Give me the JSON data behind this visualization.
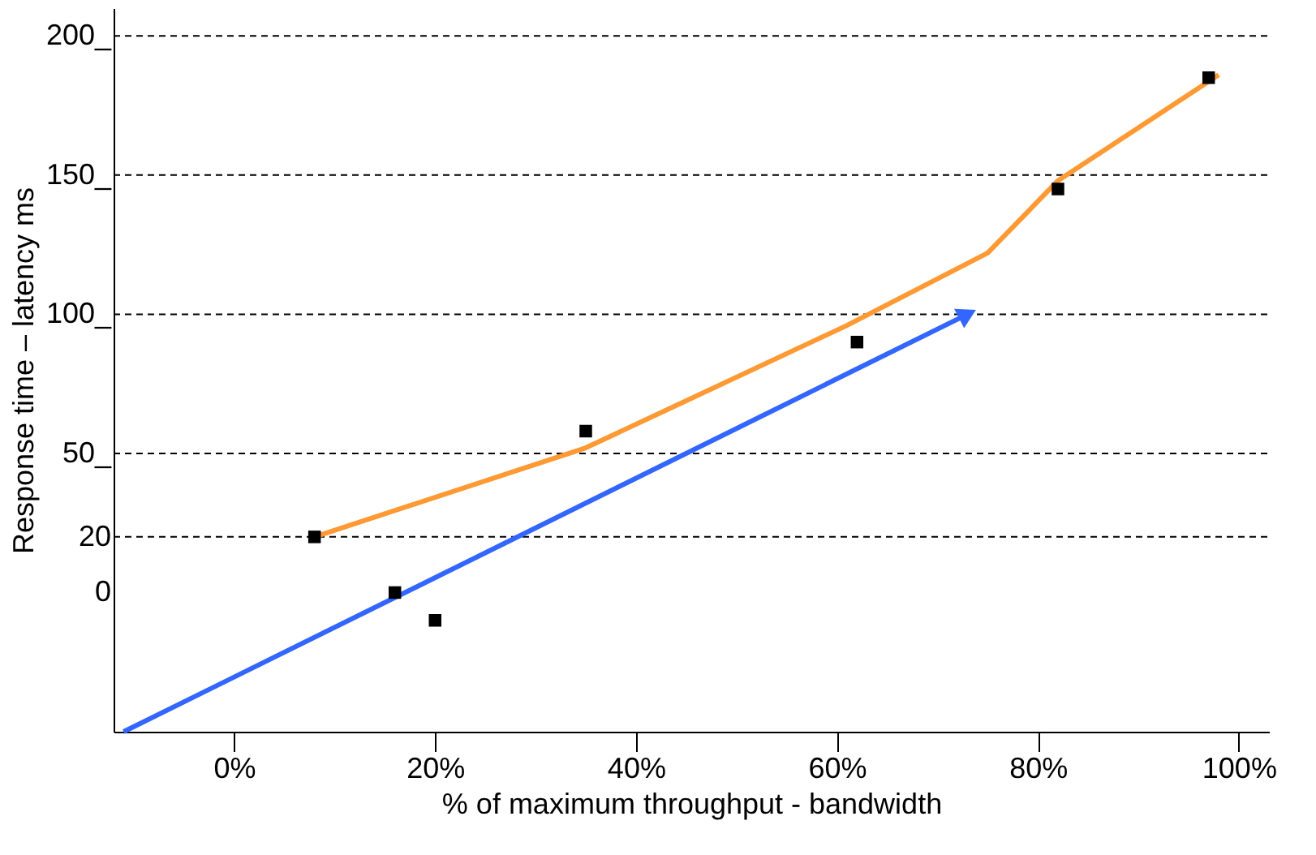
{
  "chart_data": {
    "type": "scatter",
    "xlabel": "% of maximum throughput - bandwidth",
    "ylabel": "Response time – latency ms",
    "xlim": [
      -12,
      103
    ],
    "xticks": [
      {
        "value": 0,
        "label": "0%"
      },
      {
        "value": 20,
        "label": "20%"
      },
      {
        "value": 40,
        "label": "40%"
      },
      {
        "value": 60,
        "label": "60%"
      },
      {
        "value": 80,
        "label": "80%"
      },
      {
        "value": 100,
        "label": "100%"
      }
    ],
    "ylim": [
      -50,
      210
    ],
    "yticks": [
      0,
      20,
      {
        "value": 50,
        "label": "50_"
      },
      {
        "value": 100,
        "label": "100_"
      },
      {
        "value": 150,
        "label": "150_"
      },
      {
        "value": 200,
        "label": "200_"
      }
    ],
    "grid": false,
    "ref_lines": [
      {
        "axis": "y",
        "value": 20,
        "line_style": "dashed",
        "color": "#000000"
      },
      {
        "axis": "y",
        "value": 50,
        "line_style": "dashed",
        "color": "#000000"
      },
      {
        "axis": "y",
        "value": 100,
        "line_style": "dashed",
        "color": "#000000"
      },
      {
        "axis": "y",
        "value": 150,
        "line_style": "dashed",
        "color": "#000000"
      },
      {
        "axis": "y",
        "value": 200,
        "line_style": "dashed",
        "color": "#000000"
      }
    ],
    "series": [
      {
        "type": "line",
        "color": "#ff9933",
        "marker": "none",
        "line_style": "solid",
        "x": [
          8,
          35,
          61,
          75,
          82,
          98
        ],
        "values": [
          20,
          52,
          96,
          122,
          148,
          186
        ]
      },
      {
        "type": "line",
        "color": "#3366ff",
        "marker": "triangle",
        "line_style": "solid",
        "x": [
          -11,
          73
        ],
        "values": [
          -50,
          100
        ]
      },
      {
        "color": "#000000",
        "marker": "square",
        "x": [
          8,
          16,
          20,
          35,
          62,
          82,
          97
        ],
        "values": [
          20,
          0,
          -10,
          58,
          90,
          145,
          185
        ]
      }
    ]
  }
}
